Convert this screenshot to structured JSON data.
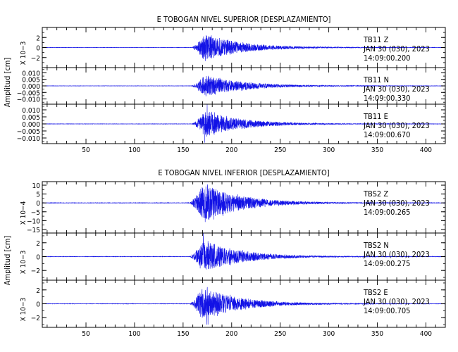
{
  "chart_data": [
    {
      "type": "line",
      "title": "E TOBOGAN NIVEL SUPERIOR [DESPLAZAMIENTO]",
      "ylabel": "Amplitud [cm]",
      "xlim": [
        5,
        420
      ],
      "x_ticks": [
        50,
        100,
        150,
        200,
        250,
        300,
        350,
        400
      ],
      "line_color": "#1212e6",
      "onset_x": 165,
      "panels": [
        {
          "ylim": [
            -4,
            4
          ],
          "y_ticks": [
            -2,
            0,
            2
          ],
          "y_tick_labels": [
            "−2",
            "0",
            "2"
          ],
          "ylabel": "X 10−3",
          "peak_amplitude": 3.4,
          "info": [
            "TB11    Z",
            "JAN 30 (030), 2023",
            "14:09:00.200"
          ]
        },
        {
          "ylim": [
            -0.014,
            0.014
          ],
          "y_ticks": [
            -0.01,
            -0.005,
            0,
            0.005,
            0.01
          ],
          "y_tick_labels": [
            "−0.010",
            "−0.005",
            "0.000",
            "0.005",
            "0.010"
          ],
          "ylabel": "",
          "peak_amplitude": 0.011,
          "info": [
            "TB11    N",
            "JAN 30 (030), 2023",
            "14:09:00.330"
          ]
        },
        {
          "ylim": [
            -0.014,
            0.014
          ],
          "y_ticks": [
            -0.01,
            -0.005,
            0,
            0.005,
            0.01
          ],
          "y_tick_labels": [
            "−0.010",
            "−0.005",
            "0.000",
            "0.005",
            "0.010"
          ],
          "ylabel": "",
          "peak_amplitude": 0.012,
          "info": [
            "TB11    E",
            "JAN 30 (030), 2023",
            "14:09:00.670"
          ]
        }
      ]
    },
    {
      "type": "line",
      "title": "E TOBOGAN NIVEL INFERIOR [DESPLAZAMIENTO]",
      "ylabel": "Amplitud [cm]",
      "xlim": [
        5,
        420
      ],
      "x_ticks": [
        50,
        100,
        150,
        200,
        250,
        300,
        350,
        400
      ],
      "line_color": "#1212e6",
      "onset_x": 163,
      "panels": [
        {
          "ylim": [
            -17,
            12
          ],
          "y_ticks": [
            -15,
            -10,
            -5,
            0,
            5,
            10
          ],
          "y_tick_labels": [
            "−15",
            "−10",
            "−5",
            "0",
            "5",
            "10"
          ],
          "ylabel": "X 10−4",
          "peak_amplitude": 14,
          "info": [
            "TBS2    Z",
            "JAN 30 (030), 2023",
            "14:09:00.265"
          ]
        },
        {
          "ylim": [
            -3.4,
            3.4
          ],
          "y_ticks": [
            -2,
            0,
            2
          ],
          "y_tick_labels": [
            "−2",
            "0",
            "2"
          ],
          "ylabel": "X 10−3",
          "peak_amplitude": 3.0,
          "info": [
            "TBS2    N",
            "JAN 30 (030), 2023",
            "14:09:00.275"
          ]
        },
        {
          "ylim": [
            -3.4,
            3.4
          ],
          "y_ticks": [
            -2,
            0,
            2
          ],
          "y_tick_labels": [
            "−2",
            "0",
            "2"
          ],
          "ylabel": "X 10−3",
          "peak_amplitude": 3.0,
          "info": [
            "TBS2    E",
            "JAN 30 (030), 2023",
            "14:09:00.705"
          ]
        }
      ]
    }
  ]
}
